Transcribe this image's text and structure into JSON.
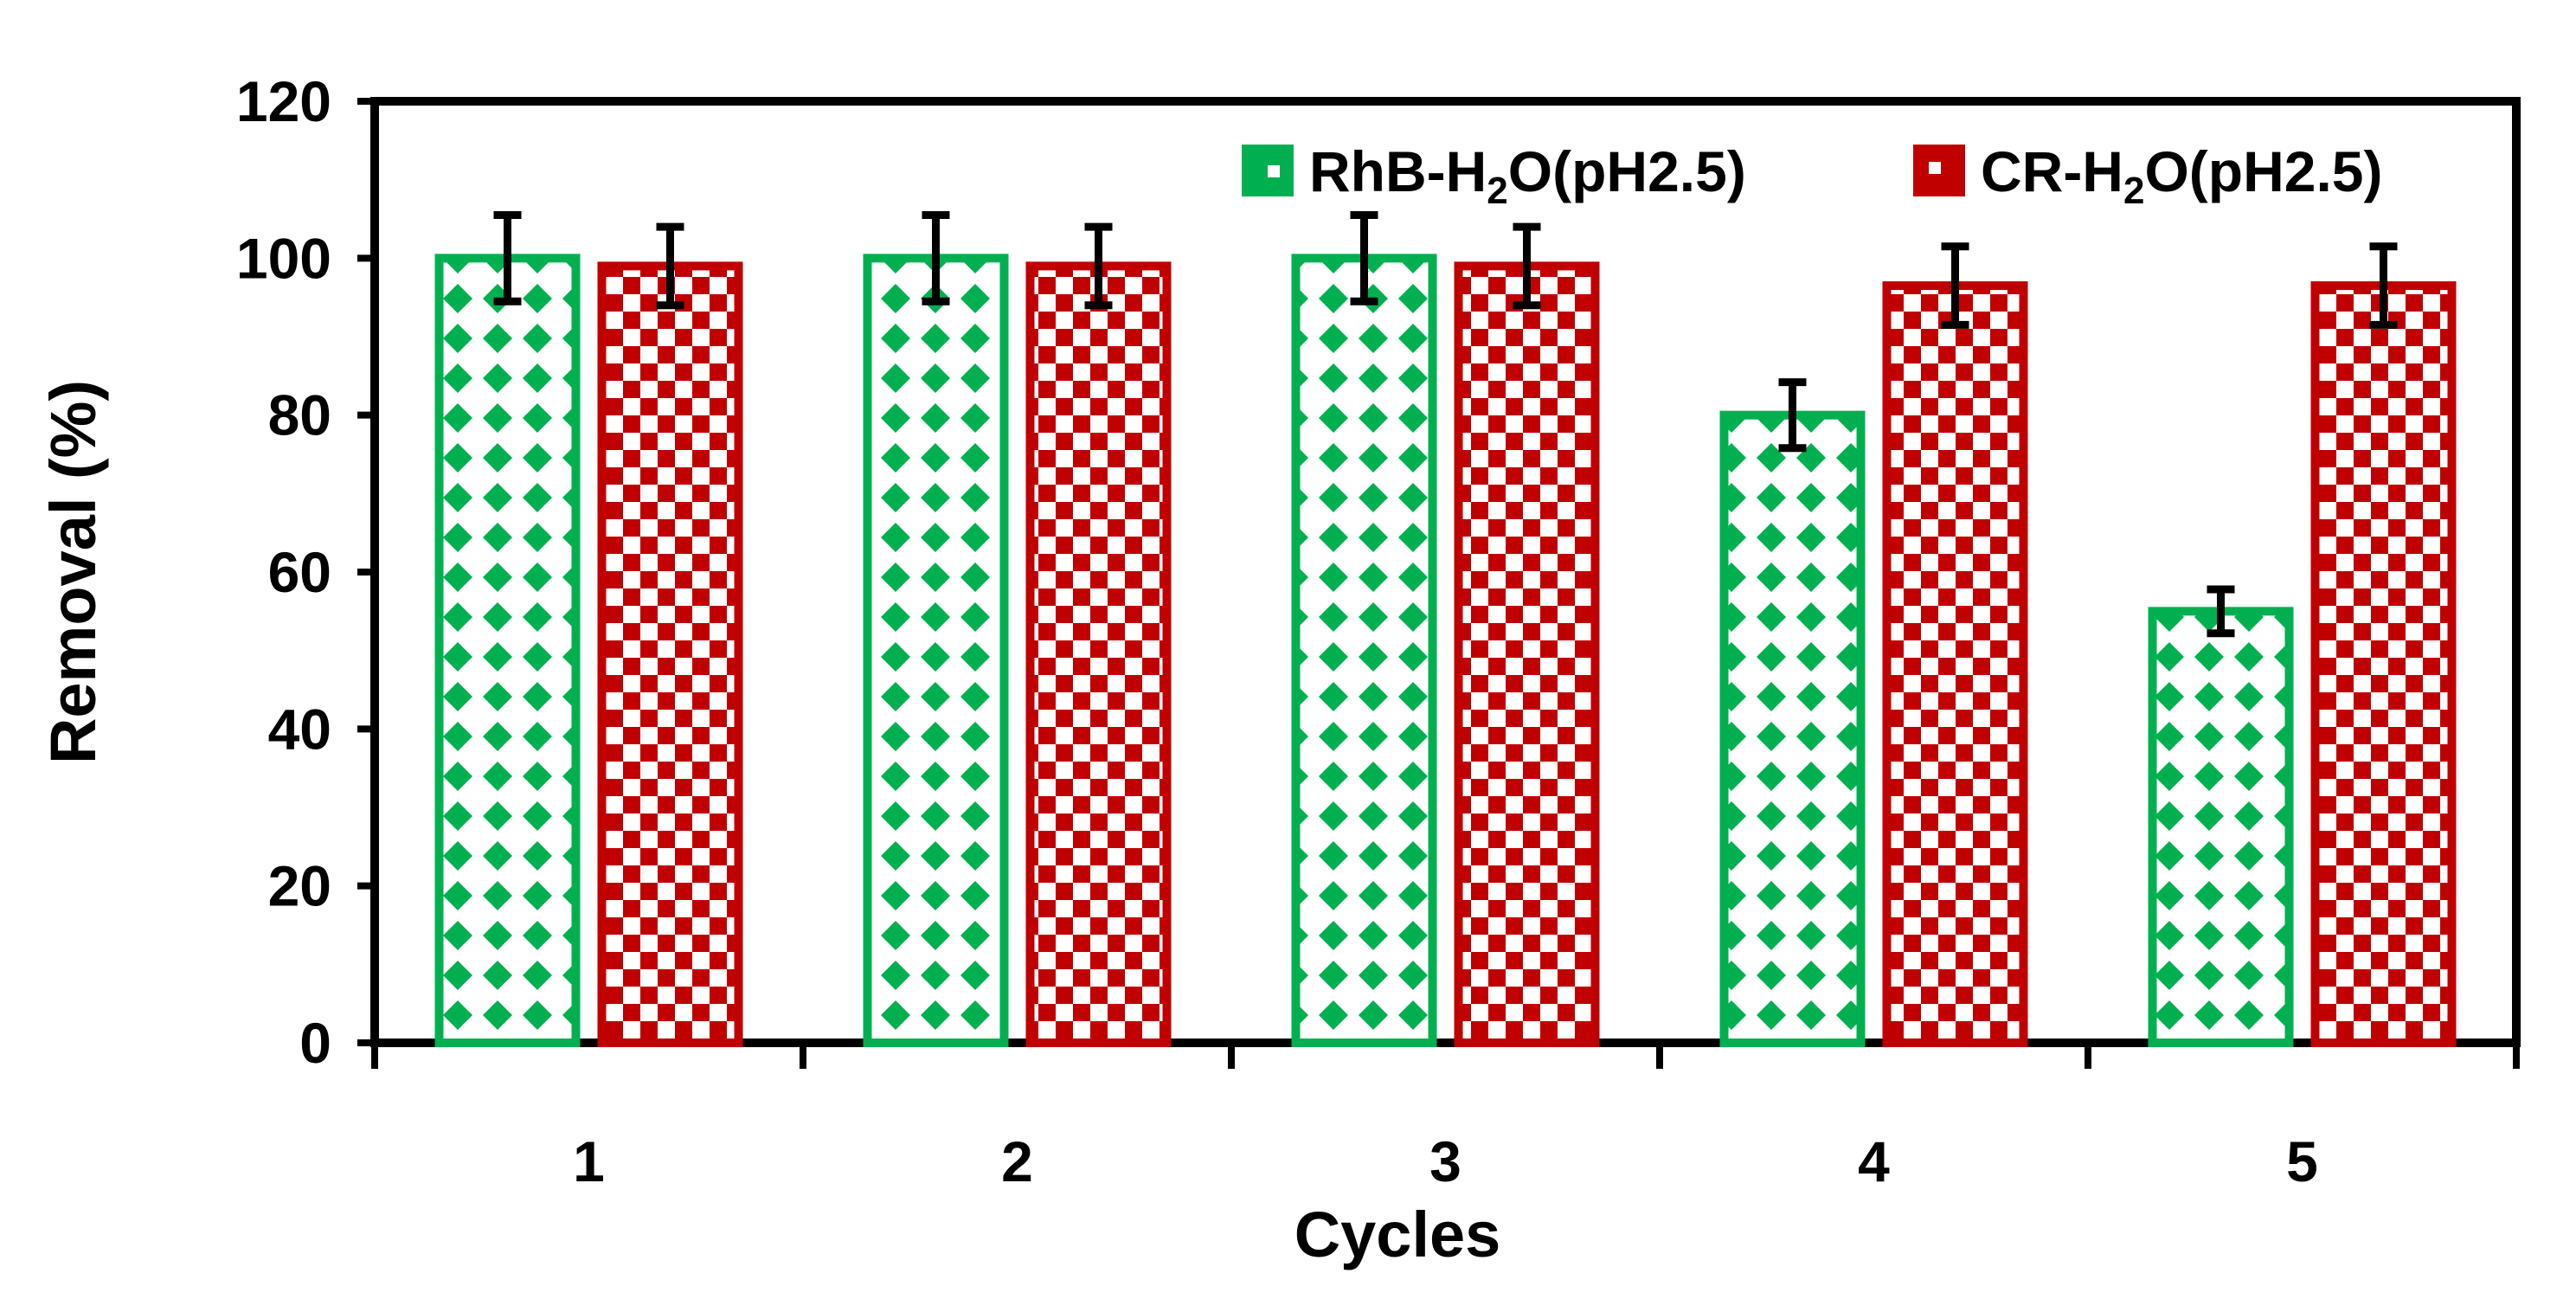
{
  "chart_data": {
    "type": "bar",
    "title": "",
    "xlabel": "Cycles",
    "ylabel": "Removal (%)",
    "ylim": [
      0,
      120
    ],
    "yticks": [
      0,
      20,
      40,
      60,
      80,
      100,
      120
    ],
    "grid": false,
    "legend_position": "top-right",
    "categories": [
      "1",
      "2",
      "3",
      "4",
      "5"
    ],
    "series": [
      {
        "name": "RhB-H2O(pH2.5)",
        "legend_parts": [
          "RhB-H",
          "2",
          "O(pH2.5)"
        ],
        "color": "#00b050",
        "pattern": "diamond",
        "values": [
          100,
          100,
          100,
          80,
          55
        ],
        "errors": [
          5.5,
          5.5,
          5.5,
          4.2,
          2.8
        ]
      },
      {
        "name": "CR-H2O(pH2.5)",
        "legend_parts": [
          "CR-H",
          "2",
          "O(pH2.5)"
        ],
        "color": "#c00000",
        "pattern": "checker",
        "values": [
          99,
          99,
          99,
          96.5,
          96.5
        ],
        "errors": [
          5,
          5,
          5,
          5,
          5
        ]
      }
    ]
  }
}
